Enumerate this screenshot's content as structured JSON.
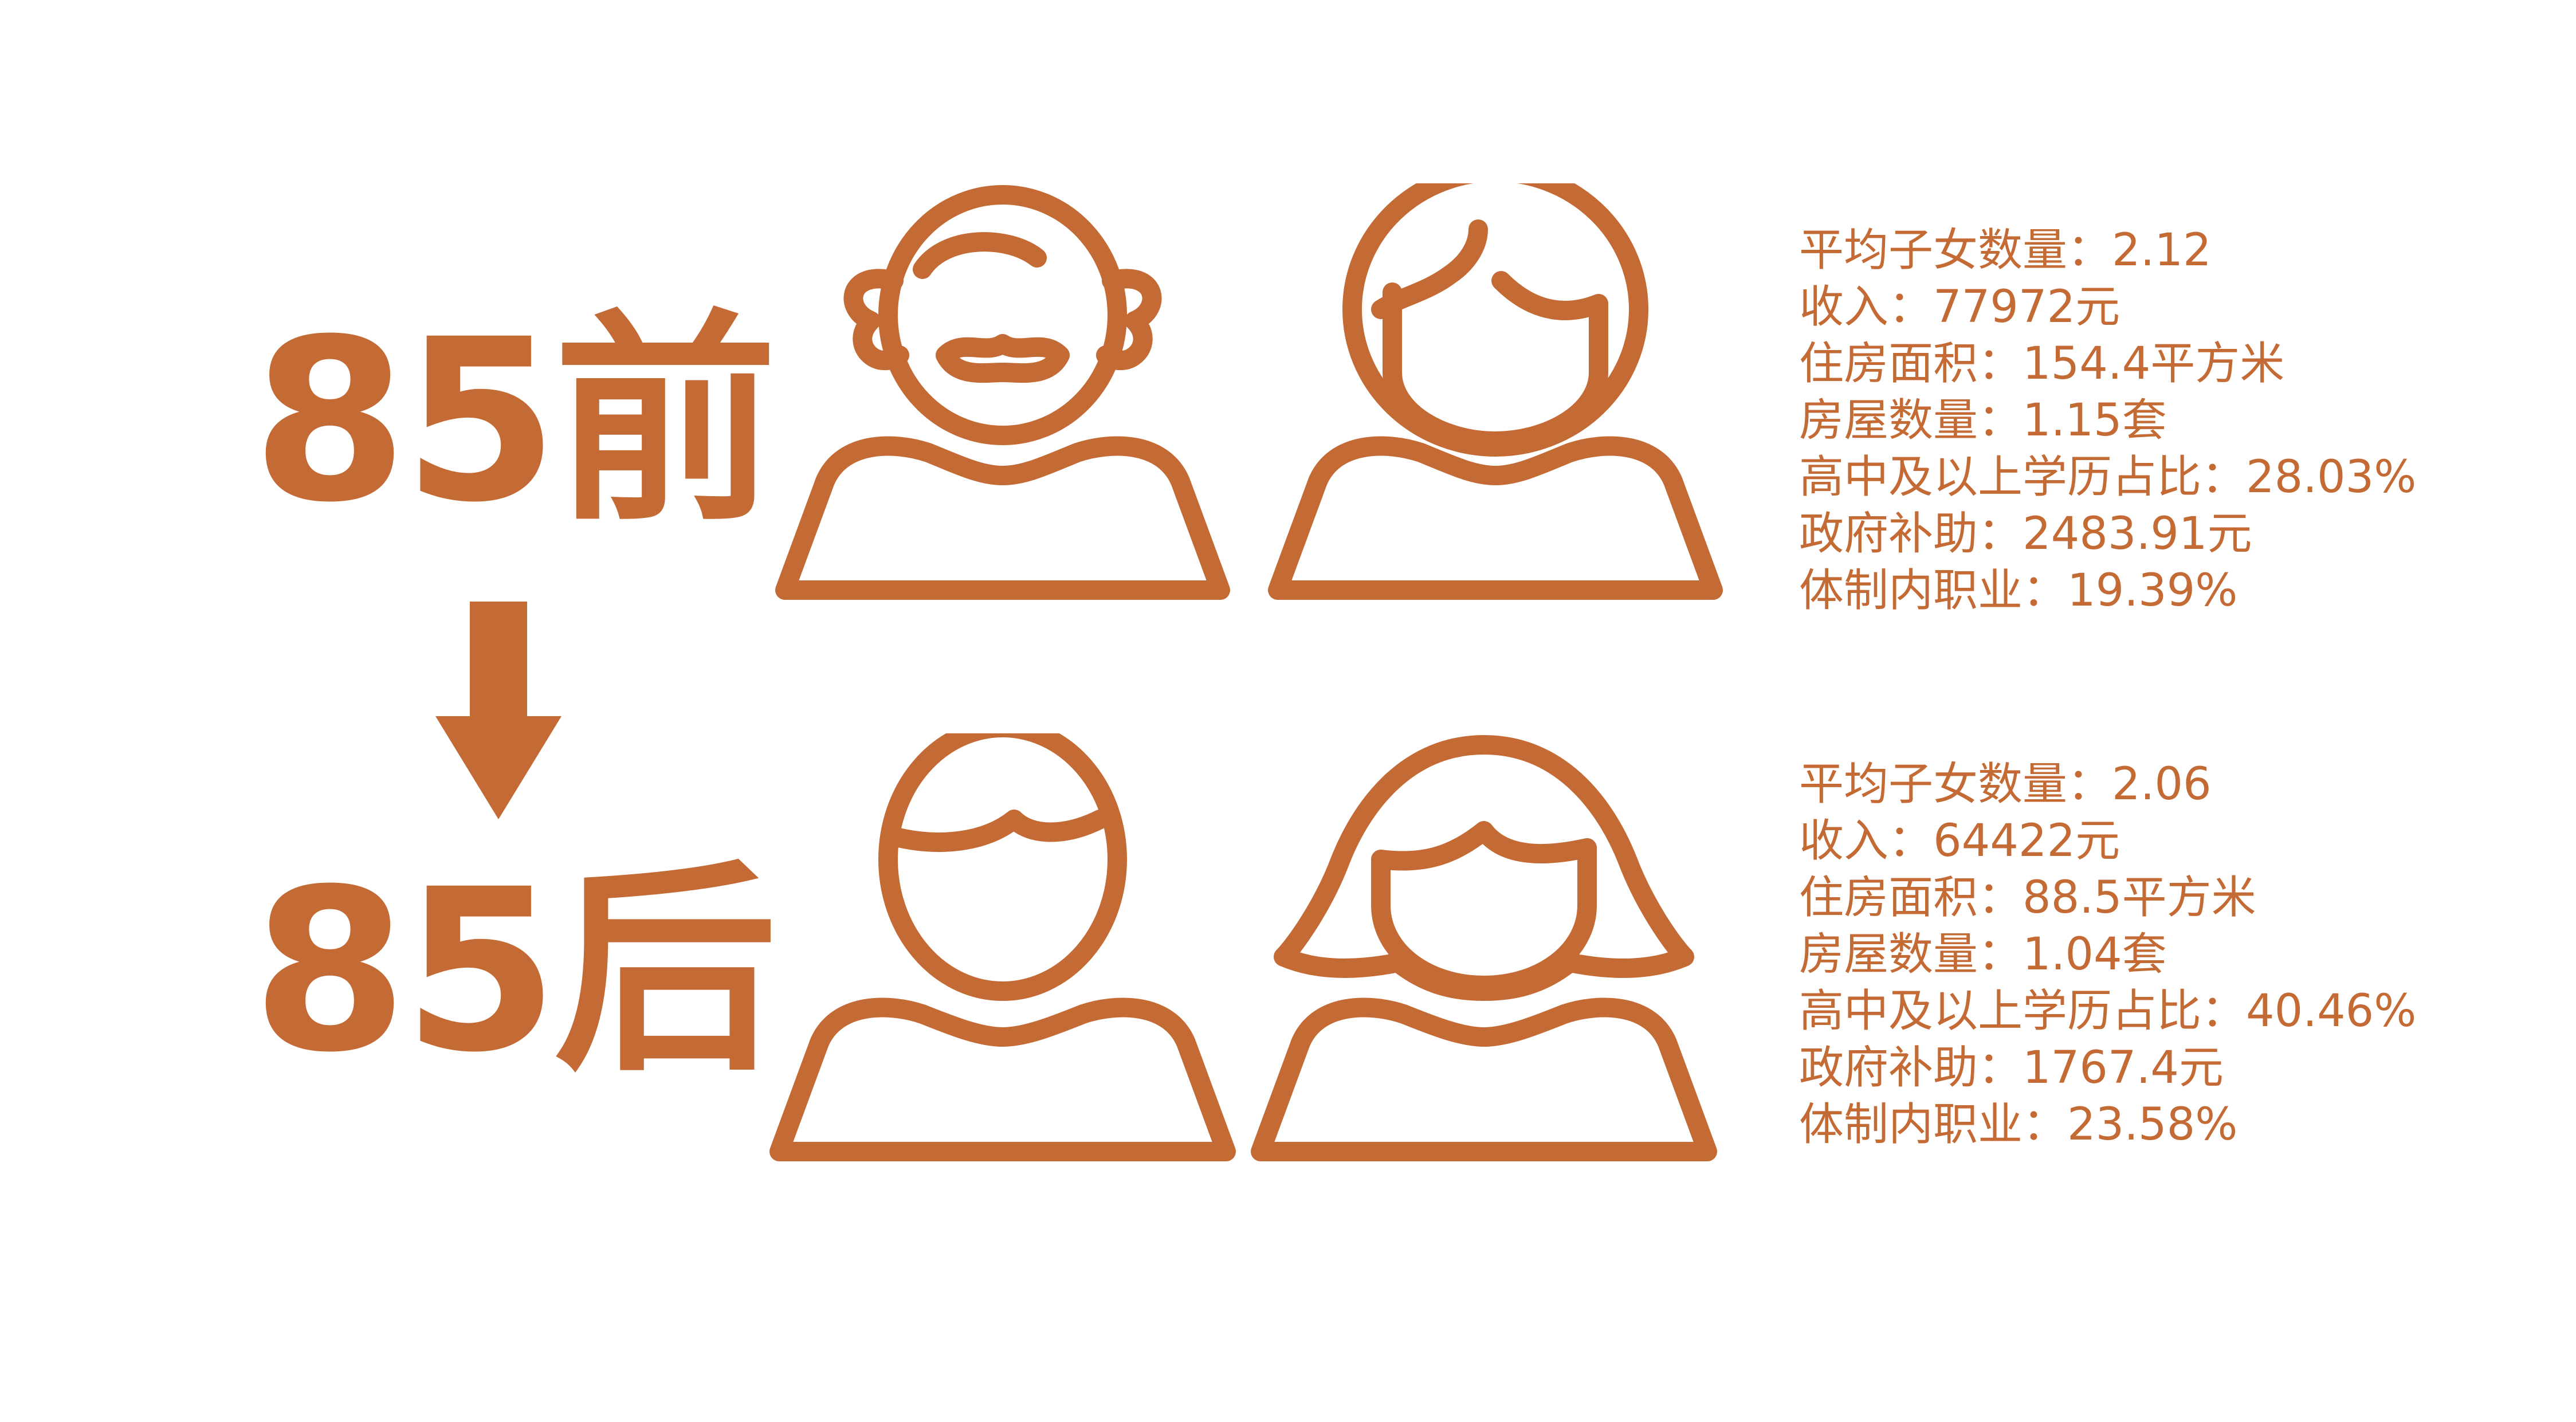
{
  "accent_color": "#c46a34",
  "groups": [
    {
      "label": "85前",
      "icons": [
        "elderly-man-icon",
        "elderly-woman-icon"
      ],
      "stats": [
        "平均子女数量：2.12",
        "收入：77972元",
        "住房面积：154.4平方米",
        "房屋数量：1.15套",
        "高中及以上学历占比：28.03%",
        "政府补助：2483.91元",
        "体制内职业：19.39%"
      ]
    },
    {
      "label": "85后",
      "icons": [
        "young-man-icon",
        "young-woman-icon"
      ],
      "stats": [
        "平均子女数量：2.06",
        "收入：64422元",
        "住房面积：88.5平方米",
        "房屋数量：1.04套",
        "高中及以上学历占比：40.46%",
        "政府补助：1767.4元",
        "体制内职业：23.58%"
      ]
    }
  ],
  "arrow_icon": "arrow-down-icon"
}
